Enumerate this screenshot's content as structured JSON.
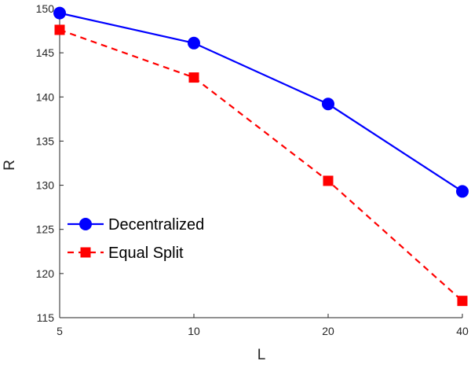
{
  "chart_data": {
    "type": "line",
    "xlabel": "L",
    "ylabel": "R",
    "x": [
      "5",
      "10",
      "20",
      "40"
    ],
    "x_scale": "categorical",
    "ylim": [
      115,
      150
    ],
    "yticks": [
      115,
      120,
      125,
      130,
      135,
      140,
      145,
      150
    ],
    "grid": false,
    "legend_position": "lower-left",
    "series": [
      {
        "name": "Decentralized",
        "values": [
          149.5,
          146.1,
          139.2,
          129.3
        ],
        "color": "#0000ff",
        "line": "solid",
        "marker": "circle"
      },
      {
        "name": "Equal Split",
        "values": [
          147.6,
          142.2,
          130.5,
          116.9
        ],
        "color": "#ff0000",
        "line": "dashed",
        "marker": "square"
      }
    ]
  }
}
